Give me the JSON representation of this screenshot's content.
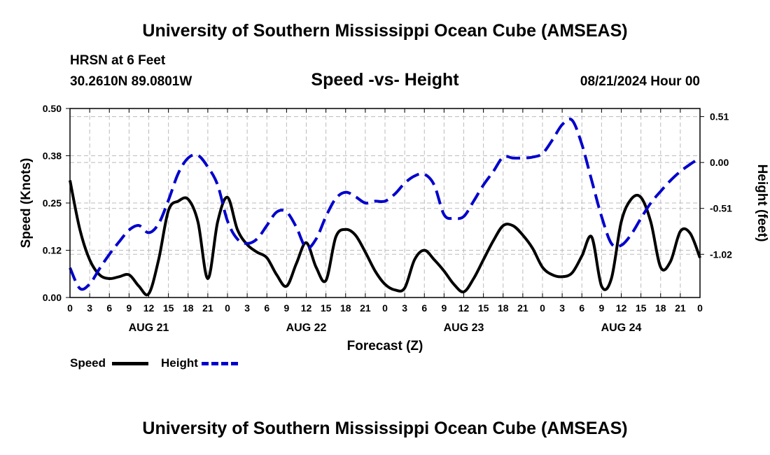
{
  "header": {
    "title_top": "University of Southern Mississippi Ocean Cube (AMSEAS)",
    "title_bottom": "University of Southern Mississippi Ocean Cube (AMSEAS)",
    "station": "HRSN at 6 Feet",
    "coords": "30.2610N  89.0801W",
    "datetime": "08/21/2024 Hour 00"
  },
  "chart_data": {
    "type": "line",
    "title": "Speed -vs- Height",
    "xlabel": "Forecast (Z)",
    "ylabel_left": "Speed (Knots)",
    "ylabel_right": "Height (feet)",
    "x_range_hours": [
      0,
      96
    ],
    "y_left_range": [
      0,
      0.5
    ],
    "y_right_range": [
      -1.5,
      0.6
    ],
    "y_left_ticks": [
      "0.00",
      "0.12",
      "0.25",
      "0.38",
      "0.50"
    ],
    "y_left_tick_values": [
      0,
      0.125,
      0.25,
      0.375,
      0.5
    ],
    "y_right_ticks": [
      "-1.02",
      "-0.51",
      "0.00",
      "0.51"
    ],
    "y_right_tick_values": [
      -1.02,
      -0.51,
      0.0,
      0.51
    ],
    "x_tick_labels": [
      "0",
      "3",
      "6",
      "9",
      "12",
      "15",
      "18",
      "21",
      "0",
      "3",
      "6",
      "9",
      "12",
      "15",
      "18",
      "21",
      "0",
      "3",
      "6",
      "9",
      "12",
      "15",
      "18",
      "21",
      "0",
      "3",
      "6",
      "9",
      "12",
      "15",
      "18",
      "21",
      "0"
    ],
    "day_labels": [
      "AUG 21",
      "AUG 22",
      "AUG 23",
      "AUG 24"
    ],
    "grid": true,
    "series": [
      {
        "name": "Speed",
        "color": "#000000",
        "style": "solid",
        "axis": "left",
        "x": [
          0,
          1.5,
          3,
          4.5,
          6,
          7.5,
          9,
          10.5,
          12,
          13.5,
          15,
          16.5,
          18,
          19.5,
          21,
          22.5,
          24,
          25.5,
          27,
          28.5,
          30,
          31.5,
          33,
          34.5,
          36,
          37.5,
          39,
          40.5,
          42,
          43.5,
          45,
          46.5,
          48,
          49.5,
          51,
          52.5,
          54,
          55.5,
          57,
          58.5,
          60,
          61.5,
          63,
          64.5,
          66,
          67.5,
          69,
          70.5,
          72,
          73.5,
          75,
          76.5,
          78,
          79.5,
          81,
          82.5,
          84,
          85.5,
          87,
          88.5,
          90,
          91.5,
          93,
          94.5,
          96
        ],
        "values": [
          0.31,
          0.18,
          0.1,
          0.06,
          0.05,
          0.055,
          0.06,
          0.03,
          0.01,
          0.1,
          0.23,
          0.255,
          0.26,
          0.2,
          0.05,
          0.2,
          0.265,
          0.18,
          0.14,
          0.12,
          0.105,
          0.06,
          0.03,
          0.09,
          0.145,
          0.08,
          0.045,
          0.16,
          0.18,
          0.165,
          0.12,
          0.07,
          0.035,
          0.02,
          0.025,
          0.1,
          0.125,
          0.1,
          0.07,
          0.035,
          0.015,
          0.05,
          0.1,
          0.15,
          0.19,
          0.19,
          0.165,
          0.13,
          0.08,
          0.06,
          0.055,
          0.065,
          0.11,
          0.16,
          0.03,
          0.05,
          0.2,
          0.26,
          0.265,
          0.2,
          0.08,
          0.095,
          0.175,
          0.17,
          0.105
        ]
      },
      {
        "name": "Height",
        "color": "#0000cc",
        "style": "dashed",
        "axis": "right",
        "x": [
          0,
          1.5,
          3,
          4.5,
          6,
          7.5,
          9,
          10.5,
          12,
          13.5,
          15,
          16.5,
          18,
          19.5,
          21,
          22.5,
          24,
          25.5,
          27,
          28.5,
          30,
          31.5,
          33,
          34.5,
          36,
          37.5,
          39,
          40.5,
          42,
          43.5,
          45,
          46.5,
          48,
          49.5,
          51,
          52.5,
          54,
          55.5,
          57,
          58.5,
          60,
          61.5,
          63,
          64.5,
          66,
          67.5,
          69,
          70.5,
          72,
          73.5,
          75,
          76.5,
          78,
          79.5,
          81,
          82.5,
          84,
          85.5,
          87,
          88.5,
          90,
          91.5,
          93,
          94.5,
          96
        ],
        "values": [
          -1.17,
          -1.4,
          -1.35,
          -1.18,
          -1.02,
          -0.88,
          -0.75,
          -0.7,
          -0.78,
          -0.68,
          -0.42,
          -0.12,
          0.05,
          0.08,
          -0.05,
          -0.25,
          -0.65,
          -0.85,
          -0.9,
          -0.85,
          -0.7,
          -0.55,
          -0.55,
          -0.72,
          -0.95,
          -0.85,
          -0.6,
          -0.4,
          -0.33,
          -0.38,
          -0.45,
          -0.43,
          -0.43,
          -0.35,
          -0.23,
          -0.15,
          -0.13,
          -0.25,
          -0.58,
          -0.62,
          -0.6,
          -0.43,
          -0.25,
          -0.1,
          0.06,
          0.05,
          0.05,
          0.06,
          0.1,
          0.25,
          0.42,
          0.47,
          0.2,
          -0.2,
          -0.6,
          -0.9,
          -0.92,
          -0.8,
          -0.62,
          -0.45,
          -0.32,
          -0.2,
          -0.1,
          -0.02,
          0.05
        ]
      }
    ],
    "legend": [
      {
        "label": "Speed",
        "style": "solid",
        "color": "#000000"
      },
      {
        "label": "Height",
        "style": "dashed",
        "color": "#0000cc"
      }
    ]
  }
}
